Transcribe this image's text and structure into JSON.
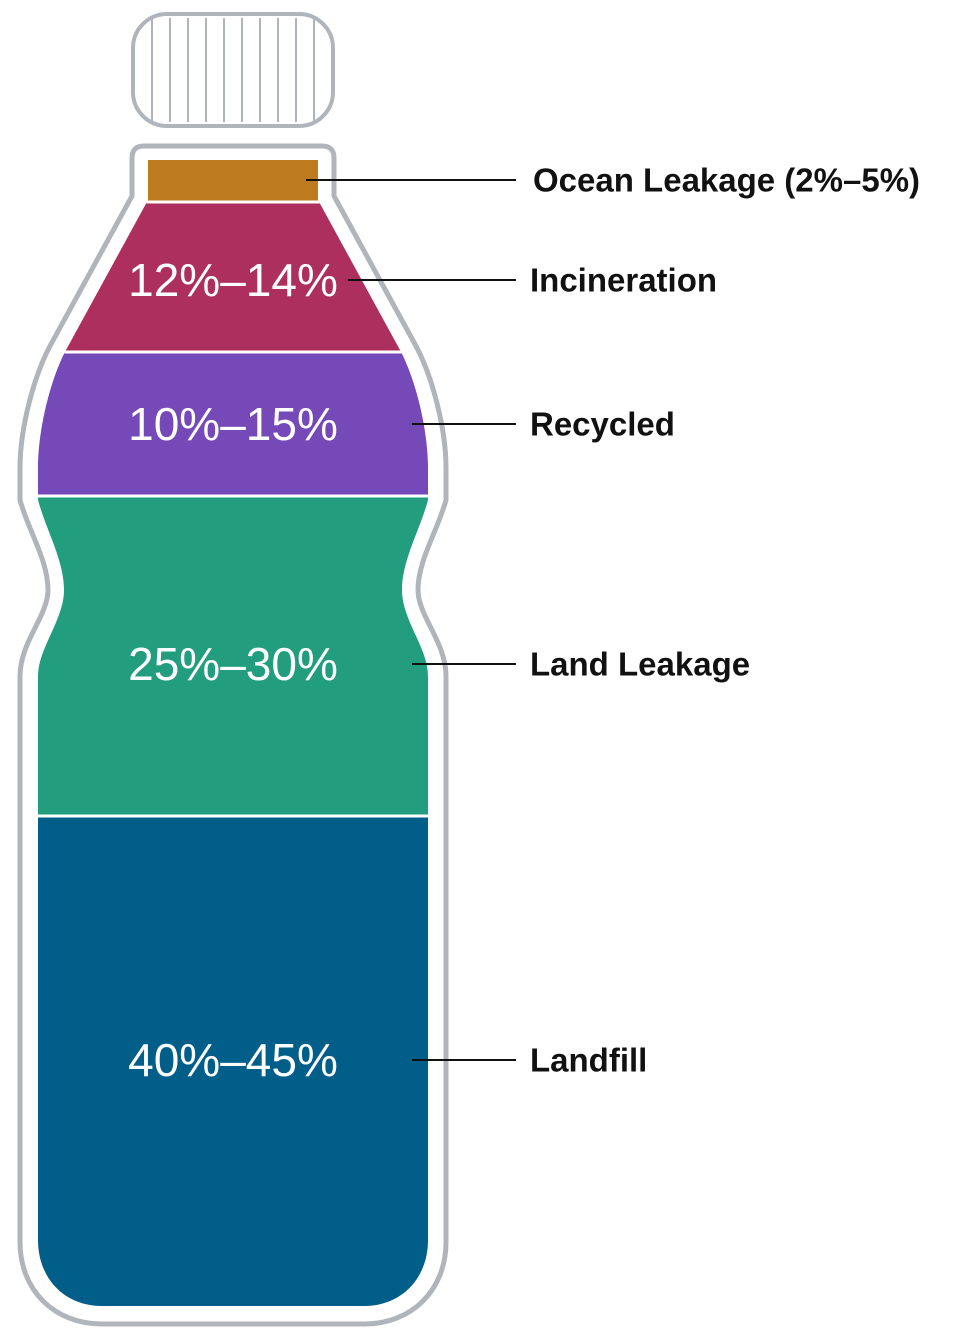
{
  "chart_data": {
    "type": "bar",
    "segments": [
      {
        "label": "Ocean Leakage (2%–5%)",
        "range": [
          2,
          5
        ],
        "value_text": "",
        "color": "#bd7a1e"
      },
      {
        "label": "Incineration",
        "range": [
          12,
          14
        ],
        "value_text": "12%–14%",
        "color": "#ad2f5d"
      },
      {
        "label": "Recycled",
        "range": [
          10,
          15
        ],
        "value_text": "10%–15%",
        "color": "#7649b8"
      },
      {
        "label": "Land Leakage",
        "range": [
          25,
          30
        ],
        "value_text": "25%–30%",
        "color": "#229e7f"
      },
      {
        "label": "Landfill",
        "range": [
          40,
          45
        ],
        "value_text": "40%–45%",
        "color": "#005e88"
      }
    ]
  },
  "colors": {
    "bottle_outline": "#b0b5bb",
    "separator": "#ffffff",
    "label_text": "#111111"
  }
}
